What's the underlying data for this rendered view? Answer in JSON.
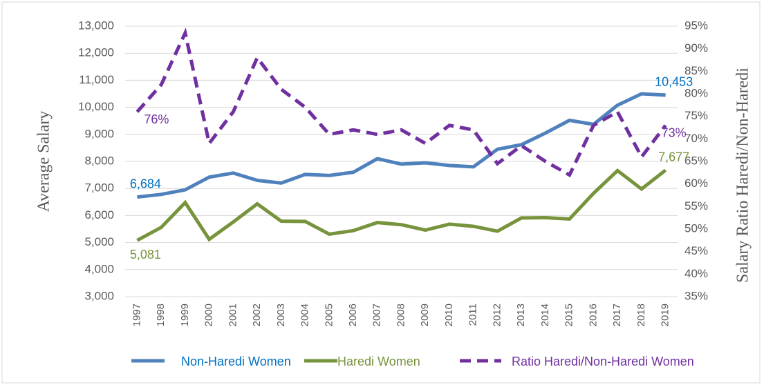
{
  "chart_data": {
    "type": "line",
    "categories": [
      "1997",
      "1998",
      "1999",
      "2000",
      "2001",
      "2002",
      "2003",
      "2004",
      "2005",
      "2006",
      "2007",
      "2008",
      "2009",
      "2010",
      "2011",
      "2012",
      "2013",
      "2014",
      "2015",
      "2016",
      "2017",
      "2018",
      "2019"
    ],
    "y_label": "Average Salary",
    "y2_label": "Salary Ratio Haredi/Non-Haredi",
    "ylim": [
      3000,
      13000
    ],
    "yticks": [
      {
        "value": 3000,
        "label": "3,000"
      },
      {
        "value": 4000,
        "label": "4,000"
      },
      {
        "value": 5000,
        "label": "5,000"
      },
      {
        "value": 6000,
        "label": "6,000"
      },
      {
        "value": 7000,
        "label": "7,000"
      },
      {
        "value": 8000,
        "label": "8,000"
      },
      {
        "value": 9000,
        "label": "9,000"
      },
      {
        "value": 10000,
        "label": "10,000"
      },
      {
        "value": 11000,
        "label": "11,000"
      },
      {
        "value": 12000,
        "label": "12,000"
      },
      {
        "value": 13000,
        "label": "13,000"
      }
    ],
    "y2lim": [
      35,
      95
    ],
    "y2ticks": [
      {
        "value": 35,
        "label": "35%"
      },
      {
        "value": 40,
        "label": "40%"
      },
      {
        "value": 45,
        "label": "45%"
      },
      {
        "value": 50,
        "label": "50%"
      },
      {
        "value": 55,
        "label": "55%"
      },
      {
        "value": 60,
        "label": "60%"
      },
      {
        "value": 65,
        "label": "65%"
      },
      {
        "value": 70,
        "label": "70%"
      },
      {
        "value": 75,
        "label": "75%"
      },
      {
        "value": 80,
        "label": "80%"
      },
      {
        "value": 85,
        "label": "85%"
      },
      {
        "value": 90,
        "label": "90%"
      },
      {
        "value": 95,
        "label": "95%"
      }
    ],
    "grid": true,
    "legend": "bottom",
    "series": [
      {
        "name": "Non-Haredi Women",
        "color": "#4f81bd",
        "label_color": "#0070c0",
        "dash": false,
        "values": [
          6684,
          6780,
          6950,
          7420,
          7570,
          7300,
          7200,
          7520,
          7480,
          7600,
          8100,
          7900,
          7950,
          7850,
          7800,
          8450,
          8620,
          9050,
          9520,
          9370,
          10080,
          10500,
          10453
        ],
        "value_labels": [
          "6,684",
          null,
          null,
          null,
          null,
          null,
          null,
          null,
          null,
          null,
          null,
          null,
          null,
          null,
          null,
          null,
          null,
          null,
          null,
          null,
          null,
          null,
          "10,453"
        ]
      },
      {
        "name": "Haredi Women",
        "color": "#77933c",
        "label_color": "#77933c",
        "dash": false,
        "values": [
          5081,
          5560,
          6480,
          5120,
          5760,
          6430,
          5790,
          5780,
          5310,
          5440,
          5740,
          5660,
          5460,
          5680,
          5600,
          5420,
          5910,
          5920,
          5870,
          6820,
          7660,
          6980,
          7677
        ],
        "value_labels": [
          "5,081",
          null,
          null,
          null,
          null,
          null,
          null,
          null,
          null,
          null,
          null,
          null,
          null,
          null,
          null,
          null,
          null,
          null,
          null,
          null,
          null,
          null,
          "7,677"
        ]
      },
      {
        "name": "Ratio Haredi/Non-Haredi Women",
        "color": "#7030a0",
        "label_color": "#7030a0",
        "dash": true,
        "axis": "y2",
        "values": [
          76,
          82,
          93.5,
          69,
          76,
          88,
          81,
          77,
          71,
          72,
          71,
          72,
          69,
          73,
          72,
          64.5,
          68.5,
          65,
          62,
          73,
          76,
          66,
          73
        ],
        "value_labels": [
          "76%",
          null,
          null,
          null,
          null,
          null,
          null,
          null,
          null,
          null,
          null,
          null,
          null,
          null,
          null,
          null,
          null,
          null,
          null,
          null,
          null,
          null,
          "73%"
        ]
      }
    ]
  }
}
